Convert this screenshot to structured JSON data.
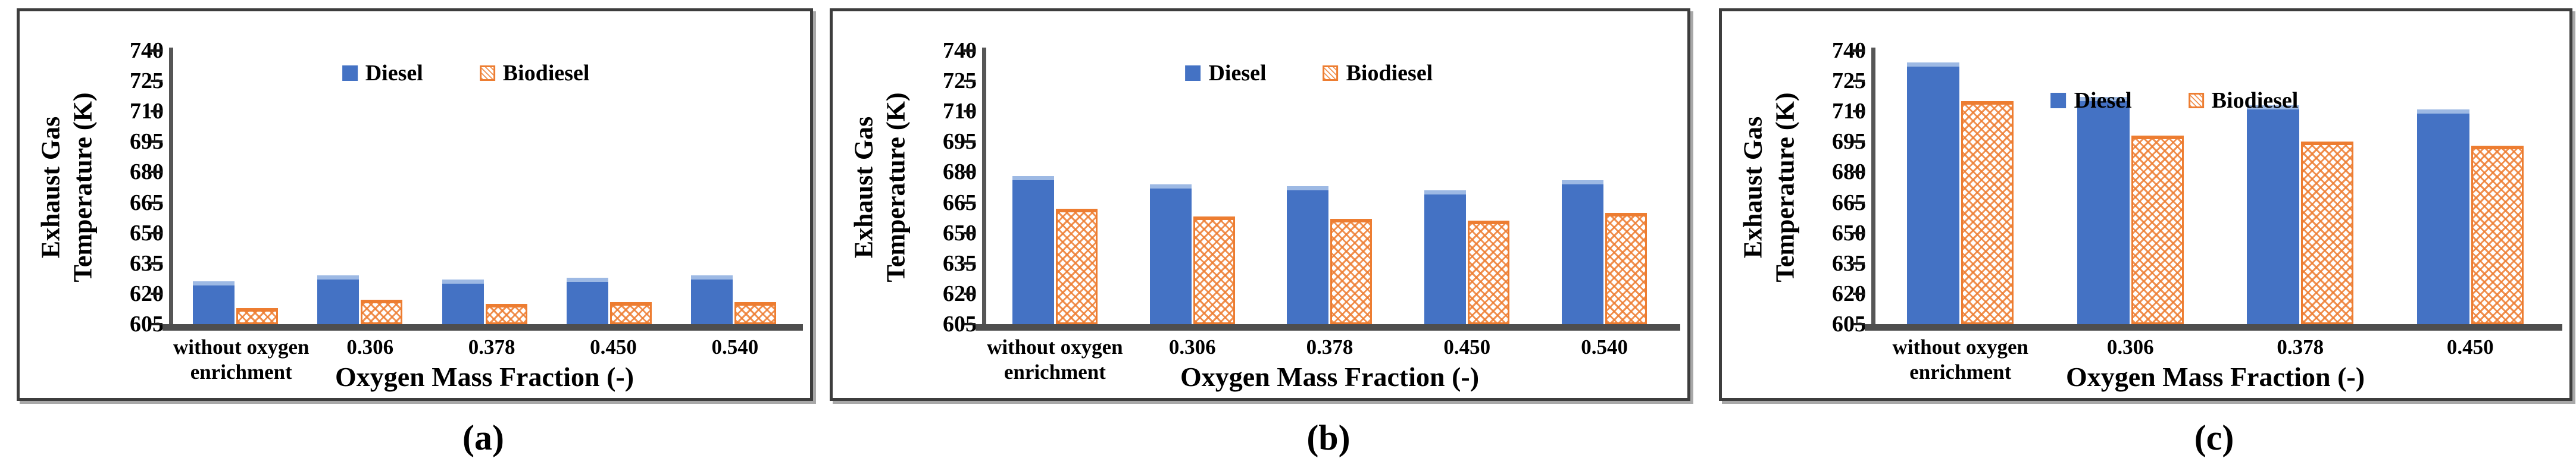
{
  "figure": {
    "captions": [
      "(a)",
      "(b)",
      "(c)"
    ],
    "colors": {
      "diesel": "#4472C4",
      "diesel_cap": "#9DB9E4",
      "biodiesel": "#ED7D31",
      "axis_line": "#565656",
      "baseline": "#4E4E4E",
      "frame": "#3D3D3D",
      "text": "#000000"
    }
  },
  "chart_data": [
    {
      "type": "bar",
      "panel_label": "(a)",
      "ylabel_line1": "Exhaust Gas",
      "ylabel_line2": "Temperature (K)",
      "xlabel": "Oxygen Mass Fraction (-)",
      "ylim": [
        605,
        740
      ],
      "yticks": [
        740,
        725,
        710,
        695,
        680,
        665,
        650,
        635,
        620,
        605
      ],
      "grid": false,
      "legend_position": "top-center",
      "categories": [
        "without oxygen\nenrichment",
        "0.306",
        "0.378",
        "0.450",
        "0.540"
      ],
      "series": [
        {
          "name": "Diesel",
          "values": [
            626,
            629,
            627,
            628,
            629
          ]
        },
        {
          "name": "Biodiesel",
          "values": [
            613,
            617,
            615,
            616,
            616
          ]
        }
      ]
    },
    {
      "type": "bar",
      "panel_label": "(b)",
      "ylabel_line1": "Exhaust Gas",
      "ylabel_line2": "Temperature (K)",
      "xlabel": "Oxygen Mass Fraction (-)",
      "ylim": [
        605,
        740
      ],
      "yticks": [
        740,
        725,
        710,
        695,
        680,
        665,
        650,
        635,
        620,
        605
      ],
      "grid": false,
      "legend_position": "top-center",
      "categories": [
        "without oxygen\nenrichment",
        "0.306",
        "0.378",
        "0.450",
        "0.540"
      ],
      "series": [
        {
          "name": "Diesel",
          "values": [
            678,
            674,
            673,
            671,
            676
          ]
        },
        {
          "name": "Biodiesel",
          "values": [
            662,
            658,
            657,
            656,
            660
          ]
        }
      ]
    },
    {
      "type": "bar",
      "panel_label": "(c)",
      "ylabel_line1": "Exhaust Gas",
      "ylabel_line2": "Temperature (K)",
      "xlabel": "Oxygen Mass Fraction (-)",
      "ylim": [
        605,
        740
      ],
      "yticks": [
        740,
        725,
        710,
        695,
        680,
        665,
        650,
        635,
        620,
        605
      ],
      "grid": false,
      "legend_position": "upper-center",
      "categories": [
        "without oxygen\nenrichment",
        "0.306",
        "0.378",
        "0.450"
      ],
      "series": [
        {
          "name": "Diesel",
          "values": [
            734,
            717,
            713,
            711
          ]
        },
        {
          "name": "Biodiesel",
          "values": [
            715,
            698,
            695,
            693
          ]
        }
      ]
    }
  ]
}
